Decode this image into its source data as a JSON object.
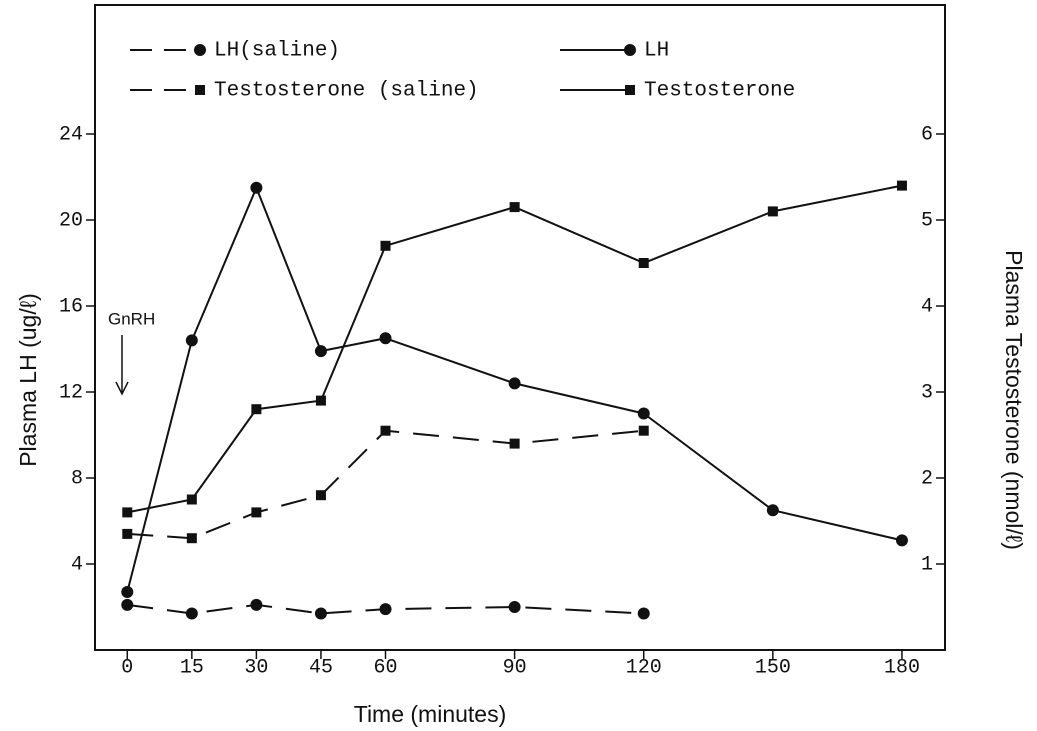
{
  "chart_data": {
    "type": "line",
    "x_label": "Time (minutes)",
    "y_label": "Plasma LH (ug/ℓ)",
    "y2_label": "Plasma Testosterone (nmol/ℓ)",
    "annotation": "GnRH",
    "x": [
      0,
      15,
      30,
      45,
      60,
      90,
      120,
      150,
      180
    ],
    "xlim": [
      -7.5,
      190
    ],
    "xticks": [
      0,
      15,
      30,
      45,
      60,
      90,
      120,
      150,
      180
    ],
    "ylim": [
      0,
      30
    ],
    "yticks": [
      4,
      8,
      12,
      16,
      20,
      24
    ],
    "y2lim": [
      0,
      7.5
    ],
    "y2ticks": [
      1,
      2,
      3,
      4,
      5,
      6
    ],
    "series": [
      {
        "name": "LH(saline)",
        "color": "#111111",
        "marker": "circle",
        "dashed": true,
        "values": [
          2.1,
          1.7,
          2.1,
          1.7,
          1.9,
          2.0,
          1.7,
          null,
          null
        ]
      },
      {
        "name": "LH",
        "color": "#111111",
        "marker": "circle",
        "dashed": false,
        "values": [
          2.7,
          14.4,
          21.5,
          13.9,
          14.5,
          12.4,
          11.0,
          6.5,
          5.1
        ]
      },
      {
        "name": "Testosterone (saline)",
        "color": "#111111",
        "marker": "square",
        "dashed": true,
        "axis": "y2",
        "values": [
          1.35,
          1.3,
          1.6,
          1.8,
          2.55,
          2.4,
          2.55,
          null,
          null
        ]
      },
      {
        "name": "Testosterone",
        "color": "#111111",
        "marker": "square",
        "dashed": false,
        "axis": "y2",
        "values": [
          1.6,
          1.75,
          2.8,
          2.9,
          4.7,
          5.15,
          4.5,
          5.1,
          5.4
        ]
      }
    ]
  }
}
